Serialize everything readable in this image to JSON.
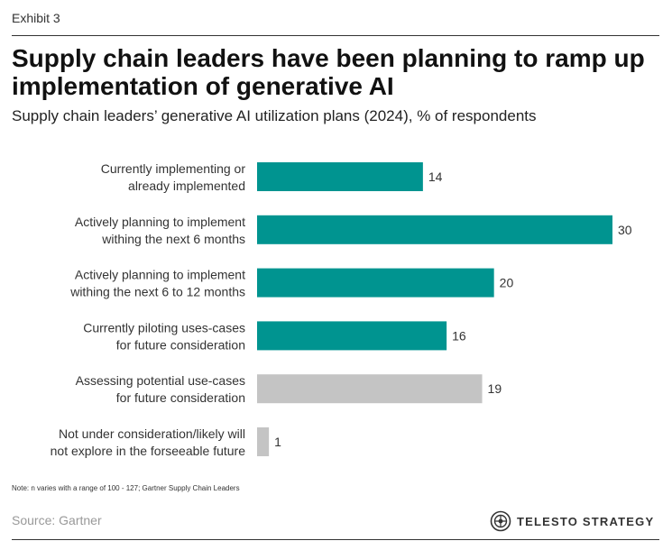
{
  "exhibit": "Exhibit 3",
  "title": "Supply chain leaders have been planning to ramp up implementation of generative AI",
  "subtitle": "Supply chain leaders’ generative AI utilization plans (2024), % of respondents",
  "note": "Note: n varies with a range of 100 - 127; Gartner Supply Chain Leaders",
  "source": "Source: Gartner",
  "brand": "TELESTO STRATEGY",
  "brand_icon": "telesto-logo-icon",
  "colors": {
    "teal": "#009490",
    "gray": "#c4c4c4"
  },
  "chart_data": {
    "type": "bar",
    "orientation": "horizontal",
    "categories": [
      [
        "Currently implementing or",
        "already implemented"
      ],
      [
        "Actively planning to implement",
        "withing the next 6 months"
      ],
      [
        "Actively planning to implement",
        "withing the next 6 to 12 months"
      ],
      [
        "Currently piloting uses-cases",
        "for future consideration"
      ],
      [
        "Assessing potential use-cases",
        "for future consideration"
      ],
      [
        "Not under consideration/likely will",
        "not explore in the forseeable future"
      ]
    ],
    "values": [
      14,
      30,
      20,
      16,
      19,
      1
    ],
    "bar_colors": [
      "#009490",
      "#009490",
      "#009490",
      "#009490",
      "#c4c4c4",
      "#c4c4c4"
    ],
    "xlim": [
      0,
      30
    ],
    "grid": false,
    "legend": "none"
  }
}
